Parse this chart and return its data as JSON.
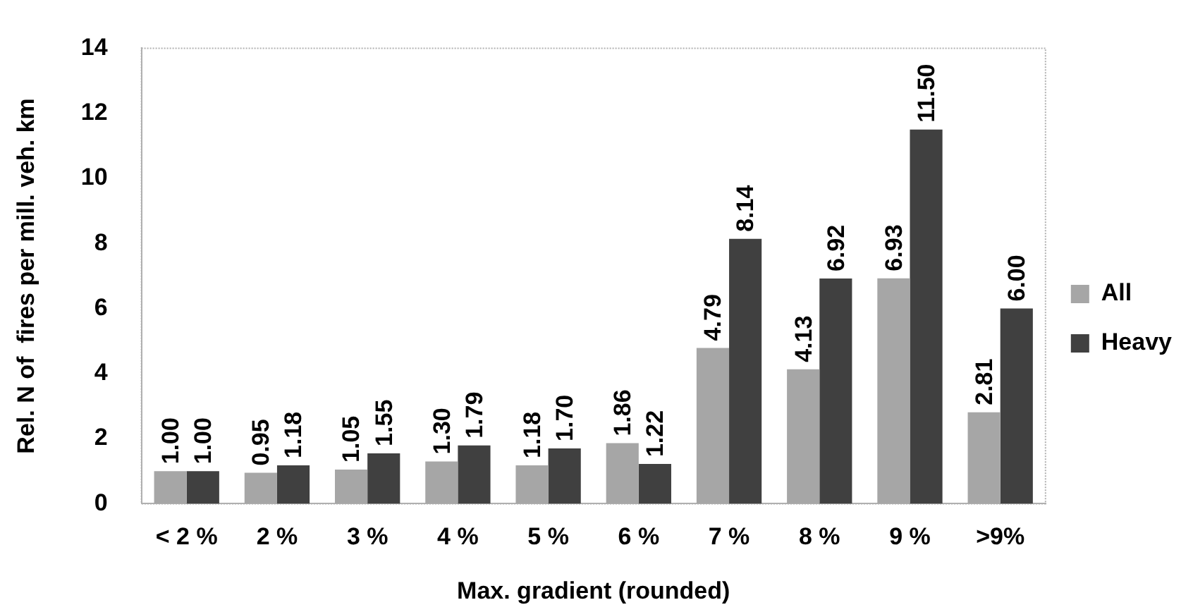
{
  "chart_data": {
    "type": "bar",
    "xlabel": "Max. gradient (rounded)",
    "ylabel": "Rel. N of  fires per mill. veh. km",
    "categories": [
      "< 2 %",
      "2 %",
      "3 %",
      "4 %",
      "5 %",
      "6 %",
      "7 %",
      "8 %",
      "9 %",
      ">9%"
    ],
    "series": [
      {
        "name": "All",
        "color": "#a6a6a6",
        "values": [
          1.0,
          0.95,
          1.05,
          1.3,
          1.18,
          1.86,
          4.79,
          4.13,
          6.93,
          2.81
        ],
        "value_labels": [
          "1.00",
          "0.95",
          "1.05",
          "1.30",
          "1.18",
          "1.86",
          "4.79",
          "4.13",
          "6.93",
          "2.81"
        ]
      },
      {
        "name": "Heavy",
        "color": "#404040",
        "values": [
          1.0,
          1.18,
          1.55,
          1.79,
          1.7,
          1.22,
          8.14,
          6.92,
          11.5,
          6.0
        ],
        "value_labels": [
          "1.00",
          "1.18",
          "1.55",
          "1.79",
          "1.70",
          "1.22",
          "8.14",
          "6.92",
          "11.50",
          "6.00"
        ]
      }
    ],
    "ylim": [
      0,
      14
    ],
    "yticks": [
      0,
      2,
      4,
      6,
      8,
      10,
      12,
      14
    ],
    "grid": false,
    "legend": "right"
  }
}
